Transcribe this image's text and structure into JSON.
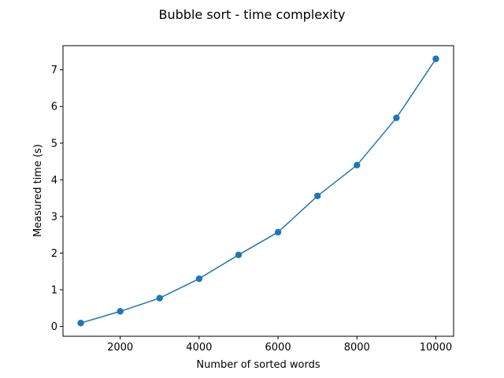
{
  "chart_data": {
    "type": "line",
    "title": "Bubble sort - time complexity",
    "xlabel": "Number of sorted words",
    "ylabel": "Measured time (s)",
    "x": [
      1000,
      2000,
      3000,
      4000,
      5000,
      6000,
      7000,
      8000,
      9000,
      10000
    ],
    "series": [
      {
        "values": [
          0.09,
          0.41,
          0.77,
          1.3,
          1.95,
          2.57,
          3.56,
          4.4,
          5.69,
          7.3
        ],
        "color": "#1f77b4",
        "marker": "circle"
      }
    ],
    "xlim": [
      550,
      10450
    ],
    "ylim": [
      -0.27,
      7.66
    ],
    "xticks": [
      2000,
      4000,
      6000,
      8000,
      10000
    ],
    "yticks": [
      0,
      1,
      2,
      3,
      4,
      5,
      6,
      7
    ],
    "grid": false
  }
}
